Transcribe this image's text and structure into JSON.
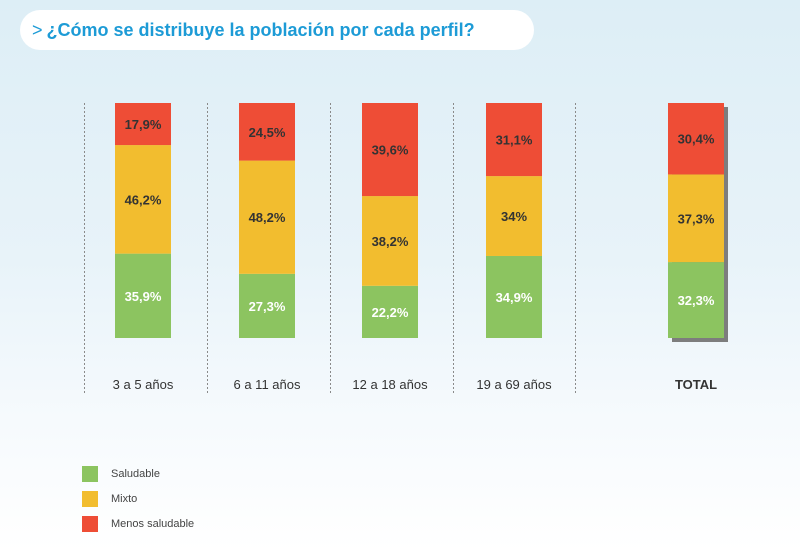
{
  "title": {
    "prefix": ">",
    "text": "¿Cómo se distribuye la población por cada perfil?"
  },
  "colors": {
    "saludable": "#8cc460",
    "mixto": "#f2bd2f",
    "menos_saludable": "#ee4d36",
    "divider": "#8a8a8a",
    "label_text": "#333333",
    "value_text_dark": "#333333",
    "value_text_light": "#ffffff"
  },
  "chart_data": {
    "type": "bar",
    "stacked": true,
    "orientation": "vertical",
    "unit": "%",
    "categories": [
      "3 a 5 años",
      "6 a 11 años",
      "12 a 18 años",
      "19 a 69 años",
      "TOTAL"
    ],
    "series": [
      {
        "name": "Saludable",
        "key": "saludable",
        "values": [
          35.9,
          27.3,
          22.2,
          34.9,
          32.3
        ],
        "labels": [
          "35,9%",
          "27,3%",
          "22,2%",
          "34,9%",
          "32,3%"
        ]
      },
      {
        "name": "Mixto",
        "key": "mixto",
        "values": [
          46.2,
          48.2,
          38.2,
          34,
          37.3
        ],
        "labels": [
          "46,2%",
          "48,2%",
          "38,2%",
          "34%",
          "37,3%"
        ]
      },
      {
        "name": "Menos saludable",
        "key": "menos_saludable",
        "values": [
          17.9,
          24.5,
          39.6,
          31.1,
          30.4
        ],
        "labels": [
          "17,9%",
          "24,5%",
          "39,6%",
          "31,1%",
          "30,4%"
        ]
      }
    ],
    "ylim": [
      0,
      100
    ],
    "grid": false,
    "legend_position": "bottom-left"
  },
  "legend": [
    {
      "label": "Saludable",
      "key": "saludable"
    },
    {
      "label": "Mixto",
      "key": "mixto"
    },
    {
      "label": "Menos saludable",
      "key": "menos_saludable"
    }
  ]
}
